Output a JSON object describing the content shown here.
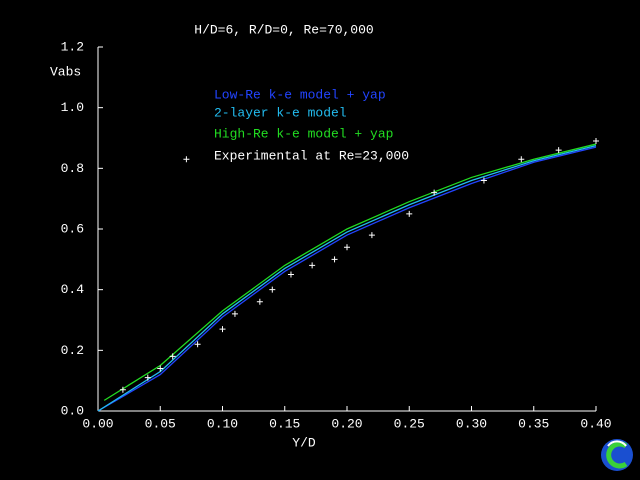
{
  "chart_data": {
    "type": "line",
    "title": "H/D=6, R/D=0, Re=70,000",
    "x_label": "Y/D",
    "y_label": "Vabs",
    "xlim": [
      0,
      0.4
    ],
    "ylim": [
      0,
      1.2
    ],
    "xticks": [
      {
        "value": 0,
        "label": "0.00"
      },
      {
        "value": 0.05,
        "label": "0.05"
      },
      {
        "value": 0.1,
        "label": "0.10"
      },
      {
        "value": 0.15,
        "label": "0.15"
      },
      {
        "value": 0.2,
        "label": "0.20"
      },
      {
        "value": 0.25,
        "label": "0.25"
      },
      {
        "value": 0.3,
        "label": "0.30"
      },
      {
        "value": 0.35,
        "label": "0.35"
      },
      {
        "value": 0.4,
        "label": "0.40"
      }
    ],
    "yticks": [
      {
        "value": 0,
        "label": "0.0"
      },
      {
        "value": 0.2,
        "label": "0.2"
      },
      {
        "value": 0.4,
        "label": "0.4"
      },
      {
        "value": 0.6,
        "label": "0.6"
      },
      {
        "value": 0.8,
        "label": "0.8"
      },
      {
        "value": 1.0,
        "label": "1.0"
      },
      {
        "value": 1.2,
        "label": "1.2"
      }
    ],
    "series": [
      {
        "name": "Low-Re k-e model + yap",
        "color": "#2244ff",
        "marker": "none",
        "x": [
          0,
          0.05,
          0.1,
          0.15,
          0.2,
          0.25,
          0.3,
          0.35,
          0.4
        ],
        "values": [
          0,
          0.12,
          0.31,
          0.46,
          0.58,
          0.67,
          0.75,
          0.82,
          0.87
        ]
      },
      {
        "name": "2-layer k-e model",
        "color": "#22bbee",
        "marker": "none",
        "x": [
          0,
          0.05,
          0.1,
          0.15,
          0.2,
          0.25,
          0.3,
          0.35,
          0.4
        ],
        "values": [
          0,
          0.13,
          0.32,
          0.47,
          0.59,
          0.68,
          0.76,
          0.825,
          0.875
        ]
      },
      {
        "name": "High-Re k-e model + yap",
        "color": "#22dd22",
        "marker": "none",
        "x": [
          0.005,
          0.05,
          0.1,
          0.15,
          0.2,
          0.25,
          0.3,
          0.35,
          0.4
        ],
        "values": [
          0.035,
          0.15,
          0.33,
          0.48,
          0.6,
          0.69,
          0.77,
          0.83,
          0.88
        ]
      },
      {
        "name": "Experimental at Re=23,000",
        "color": "#ffffff",
        "marker": "+",
        "x": [
          0.02,
          0.04,
          0.05,
          0.06,
          0.071,
          0.08,
          0.1,
          0.11,
          0.13,
          0.14,
          0.155,
          0.172,
          0.19,
          0.2,
          0.22,
          0.25,
          0.27,
          0.31,
          0.34,
          0.37,
          0.4
        ],
        "values": [
          0.07,
          0.11,
          0.14,
          0.18,
          0.83,
          0.22,
          0.27,
          0.32,
          0.36,
          0.4,
          0.45,
          0.48,
          0.5,
          0.54,
          0.58,
          0.65,
          0.72,
          0.76,
          0.83,
          0.86,
          0.89
        ]
      }
    ]
  }
}
